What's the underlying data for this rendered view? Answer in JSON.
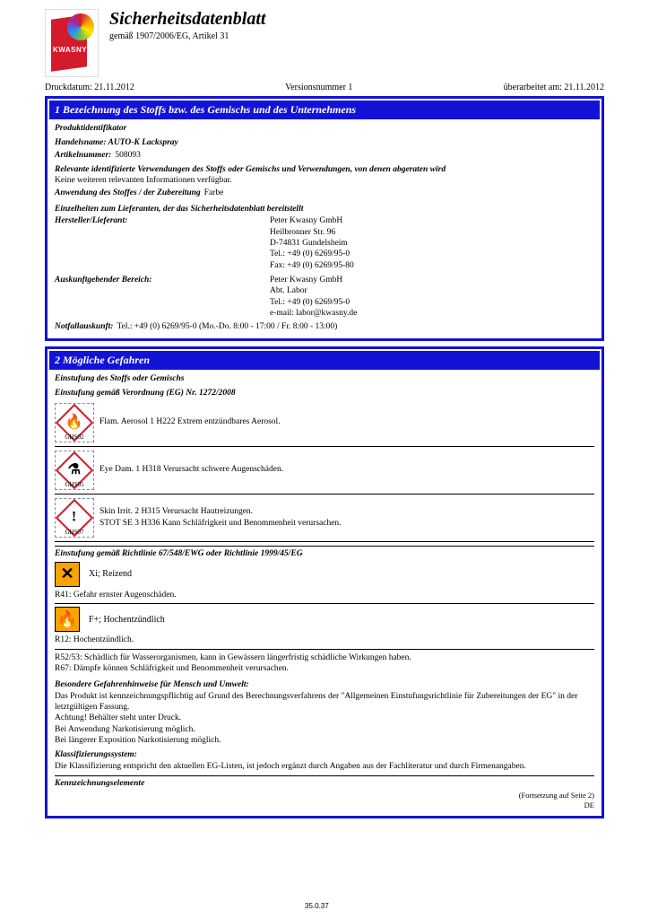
{
  "header": {
    "logo_brand": "KWASNY",
    "title": "Sicherheitsdatenblatt",
    "subtitle": "gemäß 1907/2006/EG, Artikel 31",
    "print_label": "Druckdatum: 21.11.2012",
    "version_label": "Versionsnummer 1",
    "revised_label": "überarbeitet am: 21.11.2012"
  },
  "section1": {
    "hdr": "1 Bezeichnung des Stoffs bzw. des Gemischs und des Unternehmens",
    "prod_ident_label": "Produktidentifikator",
    "tradename_label": "Handelsname: AUTO-K Lackspray",
    "artno_label": "Artikelnummer:",
    "artno_value": "508093",
    "uses_label": "Relevante identifizierte Verwendungen des Stoffs oder Gemischs und Verwendungen, von denen abgeraten wird",
    "uses_note": "Keine weiteren relevanten Informationen verfügbar.",
    "app_label": "Anwendung des Stoffes / der Zubereitung",
    "app_value": "Farbe",
    "supplier_label": "Einzelheiten zum Lieferanten, der das Sicherheitsdatenblatt bereitstellt",
    "manuf_label": "Hersteller/Lieferant:",
    "manuf_lines": [
      "Peter Kwasny GmbH",
      "Heilbronner Str. 96",
      "D-74831 Gundelsheim",
      "Tel.: +49 (0) 6269/95-0",
      "Fax: +49 (0) 6269/95-80"
    ],
    "info_label": "Auskunftgebender Bereich:",
    "info_lines": [
      "Peter Kwasny GmbH",
      "Abt. Labor",
      "Tel.: +49 (0) 6269/95-0",
      "e-mail: labor@kwasny.de"
    ],
    "emergency_label": "Notfallauskunft:",
    "emergency_value": "Tel.: +49 (0) 6269/95-0 (Mo.-Do. 8:00 - 17:00 / Fr. 8:00 - 13:00)"
  },
  "section2": {
    "hdr": "2 Mögliche Gefahren",
    "class_label": "Einstufung des Stoffs oder Gemischs",
    "clp_label": "Einstufung gemäß Verordnung (EG) Nr. 1272/2008",
    "ghs": [
      {
        "code": "GHS02",
        "icon": "🔥",
        "lines": [
          "Flam. Aerosol 1  H222 Extrem entzündbares Aerosol."
        ]
      },
      {
        "code": "GHS05",
        "icon": "⚗",
        "lines": [
          "Eye Dam. 1  H318 Verursacht schwere Augenschäden."
        ]
      },
      {
        "code": "GHS07",
        "icon": "!",
        "lines": [
          "Skin Irrit. 2  H315 Verursacht Hautreizungen.",
          "STOT SE 3  H336 Kann Schläfrigkeit und Benommenheit verursachen."
        ]
      }
    ],
    "dsd_label": "Einstufung gemäß Richtlinie 67/548/EWG oder Richtlinie 1999/45/EG",
    "dsd": [
      {
        "icon": "✕",
        "label": "Xi; Reizend",
        "rline": "R41:   Gefahr ernster Augenschäden."
      },
      {
        "icon": "🔥",
        "label": "F+; Hochentzündlich",
        "rline": "R12:   Hochentzündlich."
      },
      {
        "icon_text": "",
        "label": "",
        "rline": "R52/53:   Schädlich für Wasserorganismen, kann in Gewässern längerfristig schädliche Wirkungen haben.",
        "noicon": true
      },
      {
        "icon_text": "",
        "label": "",
        "rline": "R67:   Dämpfe können Schläfrigkeit und Benommenheit verursachen.",
        "noicon": true
      }
    ],
    "hints_label": "Besondere Gefahrenhinweise für Mensch und Umwelt:",
    "hints_lines": [
      "Das Produkt ist kennzeichnungspflichtig auf Grund des Berechnungsverfahrens der \"Allgemeinen Einstufungsrichtlinie für Zubereitungen der EG\" in der letztgültigen Fassung.",
      "Achtung! Behälter steht unter Druck.",
      "Bei Anwendung Narkotisierung möglich.",
      "Bei längerer Exposition Narkotisierung möglich."
    ],
    "class_sys_label": "Klassifizierungssystem:",
    "class_sys_text": "Die Klassifizierung entspricht den aktuellen EG-Listen, ist jedoch ergänzt durch Angaben aus der Fachliteratur und durch Firmenangaben.",
    "label_elem": "Kennzeichnungselemente"
  },
  "footer": {
    "cont": "(Fortsetzung auf Seite 2)",
    "lang": "DE",
    "mark": "35.0.37"
  },
  "colors": {
    "box_border": "#1313d8",
    "hdr_bg": "#1313d8",
    "ghs_border": "#d41b2c",
    "dsd_bg": "#f7a400",
    "logo_red": "#d41b2c"
  }
}
